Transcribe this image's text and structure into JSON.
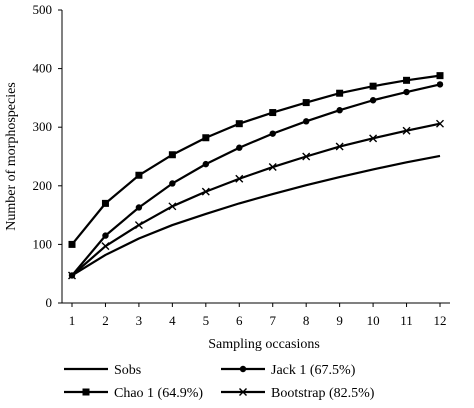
{
  "chart_data": {
    "type": "line",
    "title": "",
    "xlabel": "Sampling occasions",
    "ylabel": "Number of morphospecies",
    "x": [
      1,
      2,
      3,
      4,
      5,
      6,
      7,
      8,
      9,
      10,
      11,
      12
    ],
    "xlim": [
      1,
      12
    ],
    "ylim": [
      0,
      500
    ],
    "yticks": [
      0,
      100,
      200,
      300,
      400,
      500
    ],
    "grid": false,
    "legend_position": "bottom",
    "series": [
      {
        "name": "Sobs",
        "marker": "none",
        "values": [
          47,
          82,
          110,
          133,
          152,
          170,
          186,
          201,
          215,
          228,
          240,
          251
        ]
      },
      {
        "name": "Jack 1 (67.5%)",
        "marker": "circle",
        "values": [
          47,
          115,
          163,
          204,
          237,
          265,
          289,
          310,
          329,
          346,
          360,
          373
        ]
      },
      {
        "name": "Chao 1 (64.9%)",
        "marker": "square",
        "values": [
          100,
          170,
          218,
          253,
          282,
          306,
          325,
          342,
          358,
          370,
          380,
          388
        ]
      },
      {
        "name": "Bootstrap (82.5%)",
        "marker": "x",
        "values": [
          47,
          97,
          133,
          165,
          190,
          212,
          232,
          250,
          267,
          281,
          294,
          306
        ]
      }
    ],
    "colors": {
      "line": "#000000",
      "axis": "#000000"
    }
  }
}
